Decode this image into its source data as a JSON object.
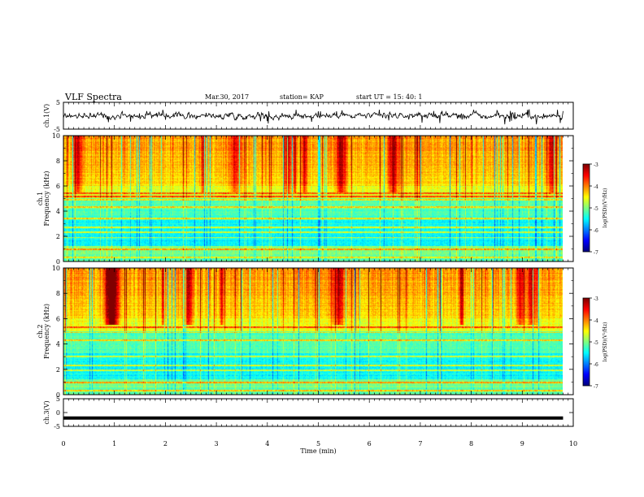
{
  "header": {
    "title": "VLF Spectra",
    "date": "Mar.30, 2017",
    "station": "station= KAP",
    "start": "start  UT =   15: 40: 1"
  },
  "chart_data": [
    {
      "type": "line",
      "panel": "ch1-waveform",
      "ylabel": "ch.1(V)",
      "ylim": [
        -5,
        5
      ],
      "yticks": [
        "5",
        "-5"
      ],
      "xlim": [
        0,
        10
      ],
      "series": [
        {
          "values": "noisy waveform, amplitude approx -3 to 2 V over 0-9.8 min"
        }
      ]
    },
    {
      "type": "heatmap",
      "panel": "ch1-spectrogram",
      "ylabel": "ch.1\nFrequency (kHz)",
      "ylim": [
        0,
        10
      ],
      "yticks": [
        "0",
        "2",
        "4",
        "6",
        "8",
        "10"
      ],
      "xlim": [
        0,
        10
      ],
      "data_extent_min": 9.8,
      "colorbar": {
        "label": "log(PSD)(V²/Hz)",
        "range": [
          -7,
          -3
        ],
        "ticks": [
          "-3",
          "-4",
          "-5",
          "-6",
          "-7"
        ]
      },
      "bands_khz": [
        0.3,
        0.95,
        1.9,
        2.3,
        2.7,
        3.4,
        4.3,
        4.9,
        5.15,
        5.4
      ]
    },
    {
      "type": "heatmap",
      "panel": "ch2-spectrogram",
      "ylabel": "ch.2\nFrequency (kHz)",
      "ylim": [
        0,
        10
      ],
      "yticks": [
        "0",
        "2",
        "4",
        "6",
        "8",
        "10"
      ],
      "xlim": [
        0,
        10
      ],
      "data_extent_min": 9.8,
      "colorbar": {
        "label": "log(PSD)(V²/Hz)",
        "range": [
          -7,
          -3
        ],
        "ticks": [
          "-3",
          "-4",
          "-5",
          "-6",
          "-7"
        ]
      },
      "bands_khz": [
        0.3,
        0.95,
        1.9,
        2.3,
        3.0,
        4.3,
        4.9,
        5.3
      ]
    },
    {
      "type": "line",
      "panel": "ch3-waveform",
      "ylabel": "ch.3(V)",
      "ylim": [
        -5,
        5
      ],
      "yticks": [
        "5",
        "0",
        "-5"
      ],
      "xlim": [
        0,
        10
      ],
      "series": [
        {
          "values": [
            -2,
            -2
          ]
        }
      ]
    }
  ],
  "xaxis": {
    "label": "Time  (min)",
    "ticks": [
      "0",
      "1",
      "2",
      "3",
      "4",
      "5",
      "6",
      "7",
      "8",
      "9",
      "10"
    ]
  },
  "colors": {
    "waveform": "#000000",
    "colormap": [
      "#00007f",
      "#0000ff",
      "#00bfff",
      "#00ff80",
      "#c8ff00",
      "#ffff00",
      "#ff8000",
      "#ff0000",
      "#7f0000"
    ]
  }
}
